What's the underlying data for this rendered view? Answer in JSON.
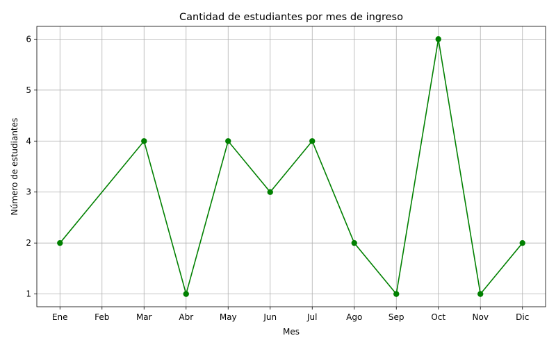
{
  "chart_data": {
    "type": "line",
    "title": "Cantidad de estudiantes por mes de ingreso",
    "xlabel": "Mes",
    "ylabel": "Número de estudiantes",
    "categories": [
      "Ene",
      "Feb",
      "Mar",
      "Abr",
      "May",
      "Jun",
      "Jul",
      "Ago",
      "Sep",
      "Oct",
      "Nov",
      "Dic"
    ],
    "points": [
      {
        "category": "Ene",
        "value": 2
      },
      {
        "category": "Mar",
        "value": 4
      },
      {
        "category": "Abr",
        "value": 1
      },
      {
        "category": "May",
        "value": 4
      },
      {
        "category": "Jun",
        "value": 3
      },
      {
        "category": "Jul",
        "value": 4
      },
      {
        "category": "Ago",
        "value": 2
      },
      {
        "category": "Sep",
        "value": 1
      },
      {
        "category": "Oct",
        "value": 6
      },
      {
        "category": "Nov",
        "value": 1
      },
      {
        "category": "Dic",
        "value": 2
      }
    ],
    "yticks": [
      1,
      2,
      3,
      4,
      5,
      6
    ],
    "ylim": [
      0.75,
      6.25
    ],
    "grid": true,
    "line_color": "#008000",
    "marker": "circle"
  }
}
